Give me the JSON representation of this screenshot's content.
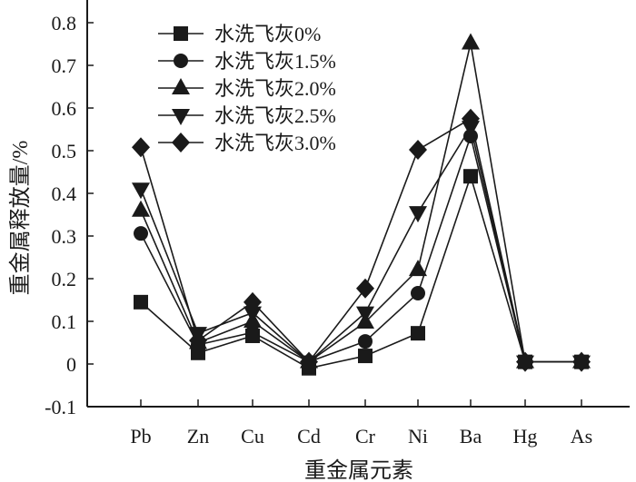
{
  "chart_data": {
    "type": "line",
    "xlabel": "重金属元素",
    "ylabel": "重金属释放量/%",
    "categories": [
      "Pb",
      "Zn",
      "Cu",
      "Cd",
      "Cr",
      "Ni",
      "Ba",
      "Hg",
      "As"
    ],
    "ylim": [
      -0.1,
      0.8
    ],
    "yticks": [
      "-0.1",
      "0",
      "0.1",
      "0.2",
      "0.3",
      "0.4",
      "0.5",
      "0.6",
      "0.7",
      "0.8"
    ],
    "grid": false,
    "legend_position": "top-left",
    "series": [
      {
        "name": "水洗飞灰0%",
        "marker": "square",
        "values": [
          0.145,
          0.026,
          0.066,
          -0.01,
          0.019,
          0.072,
          0.44,
          0.005,
          0.005
        ]
      },
      {
        "name": "水洗飞灰1.5%",
        "marker": "circle",
        "values": [
          0.306,
          0.045,
          0.074,
          0.005,
          0.053,
          0.166,
          0.534,
          0.005,
          0.005
        ]
      },
      {
        "name": "水洗飞灰2.0%",
        "marker": "triangle-up",
        "values": [
          0.36,
          0.05,
          0.1,
          0.005,
          0.098,
          0.221,
          0.752,
          0.005,
          0.005
        ]
      },
      {
        "name": "水洗飞灰2.5%",
        "marker": "triangle-down",
        "values": [
          0.41,
          0.072,
          0.12,
          0.005,
          0.12,
          0.355,
          0.555,
          0.005,
          0.005
        ]
      },
      {
        "name": "水洗飞灰3.0%",
        "marker": "diamond",
        "values": [
          0.508,
          0.055,
          0.145,
          0.005,
          0.177,
          0.502,
          0.575,
          0.005,
          0.005
        ]
      }
    ],
    "color": "#1a1a1a"
  }
}
